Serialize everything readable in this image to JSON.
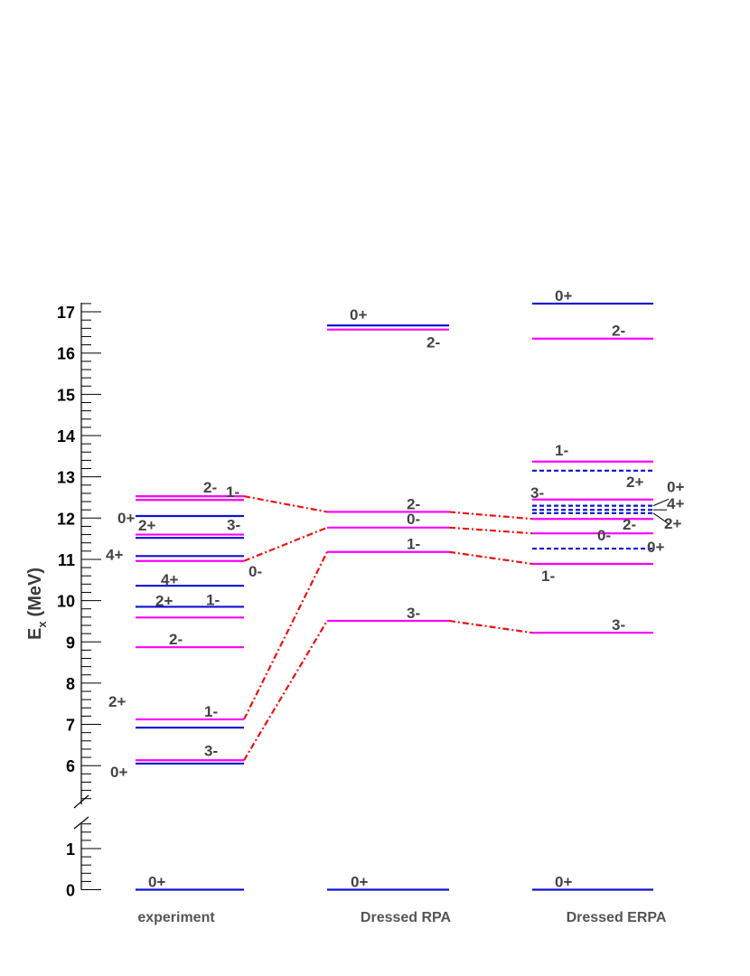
{
  "chart_data": {
    "type": "level-scheme",
    "ylabel": "E",
    "ylabel_sub": "x",
    "ylabel_unit": "(MeV)",
    "y_ticks_low": [
      0,
      1
    ],
    "y_ticks_high": [
      6,
      7,
      8,
      9,
      10,
      11,
      12,
      13,
      14,
      15,
      16,
      17
    ],
    "colors": {
      "positive_parity": "#1010d0",
      "negative_parity": "#ff00ff",
      "connector": "#ee1111",
      "label": "#444444"
    },
    "columns": [
      {
        "name": "experiment",
        "levels": [
          {
            "E": 0.0,
            "label": "0+",
            "parity": "+"
          },
          {
            "E": 6.05,
            "label": "0+",
            "parity": "+"
          },
          {
            "E": 6.13,
            "label": "3-",
            "parity": "-"
          },
          {
            "E": 6.92,
            "label": "2+",
            "parity": "+"
          },
          {
            "E": 7.12,
            "label": "1-",
            "parity": "-"
          },
          {
            "E": 8.87,
            "label": "2-",
            "parity": "-"
          },
          {
            "E": 9.59,
            "label": "1-",
            "parity": "-"
          },
          {
            "E": 9.85,
            "label": "2+",
            "parity": "+"
          },
          {
            "E": 10.36,
            "label": "4+",
            "parity": "+"
          },
          {
            "E": 10.96,
            "label": "0-",
            "parity": "-"
          },
          {
            "E": 11.08,
            "label": "4+",
            "parity": "+"
          },
          {
            "E": 11.52,
            "label": "2+",
            "parity": "+"
          },
          {
            "E": 11.6,
            "label": "3-",
            "parity": "-"
          },
          {
            "E": 12.05,
            "label": "0+",
            "parity": "+"
          },
          {
            "E": 12.44,
            "label": "1-",
            "parity": "-"
          },
          {
            "E": 12.53,
            "label": "2-",
            "parity": "-"
          }
        ]
      },
      {
        "name": "Dressed RPA",
        "levels": [
          {
            "E": 0.0,
            "label": "0+",
            "parity": "+"
          },
          {
            "E": 9.51,
            "label": "3-",
            "parity": "-"
          },
          {
            "E": 11.18,
            "label": "1-",
            "parity": "-"
          },
          {
            "E": 11.77,
            "label": "0-",
            "parity": "-"
          },
          {
            "E": 12.15,
            "label": "2-",
            "parity": "-"
          },
          {
            "E": 16.57,
            "label": "2-",
            "parity": "-"
          },
          {
            "E": 16.67,
            "label": "0+",
            "parity": "+"
          }
        ]
      },
      {
        "name": "Dressed ERPA",
        "levels": [
          {
            "E": 0.0,
            "label": "0+",
            "parity": "+"
          },
          {
            "E": 9.22,
            "label": "3-",
            "parity": "-"
          },
          {
            "E": 10.89,
            "label": "1-",
            "parity": "-"
          },
          {
            "E": 11.26,
            "label": "0+",
            "parity": "+"
          },
          {
            "E": 11.63,
            "label": "0-",
            "parity": "-"
          },
          {
            "E": 11.98,
            "label": "2-",
            "parity": "-"
          },
          {
            "E": 12.12,
            "label": "2+",
            "parity": "+"
          },
          {
            "E": 12.2,
            "label": "4+",
            "parity": "+"
          },
          {
            "E": 12.3,
            "label": "0+",
            "parity": "+"
          },
          {
            "E": 12.45,
            "label": "3-",
            "parity": "-"
          },
          {
            "E": 13.15,
            "label": "2+",
            "parity": "+"
          },
          {
            "E": 13.37,
            "label": "1-",
            "parity": "-"
          },
          {
            "E": 16.35,
            "label": "2-",
            "parity": "-"
          },
          {
            "E": 17.2,
            "label": "0+",
            "parity": "+"
          }
        ]
      }
    ],
    "connections": [
      {
        "from_E": 6.13,
        "rpa_E": 9.51,
        "erpa_E": 9.22,
        "label": "3-"
      },
      {
        "from_E": 7.12,
        "rpa_E": 11.18,
        "erpa_E": 10.89,
        "label": "1-"
      },
      {
        "from_E": 10.96,
        "rpa_E": 11.77,
        "erpa_E": 11.63,
        "label": "0-"
      },
      {
        "from_E": 12.53,
        "rpa_E": 12.15,
        "erpa_E": 11.98,
        "label": "2-"
      }
    ]
  }
}
